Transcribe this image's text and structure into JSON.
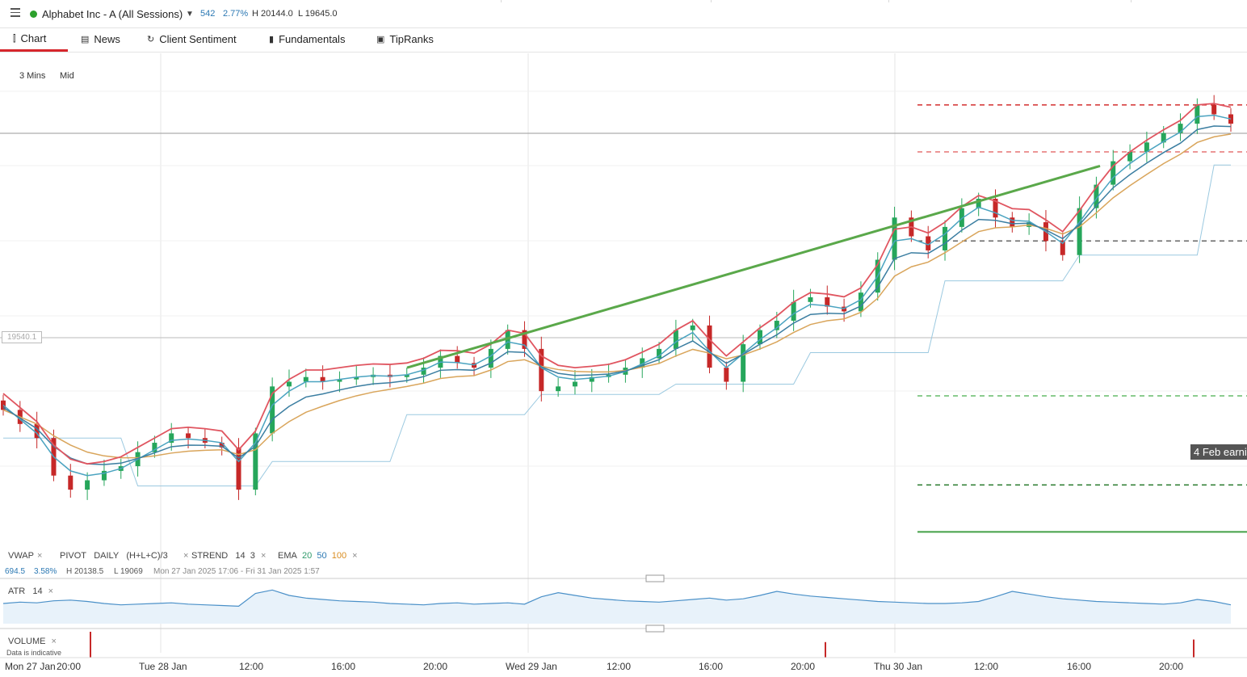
{
  "header": {
    "instrument": "Alphabet Inc - A (All Sessions)",
    "change": "542",
    "change_pct": "2.77%",
    "high": "H 20144.0",
    "low": "L 19645.0",
    "up_color": "#2ca02c"
  },
  "tabs": [
    {
      "label": "Chart",
      "icon": "candles-icon"
    },
    {
      "label": "News",
      "icon": "news-icon"
    },
    {
      "label": "Client Sentiment",
      "icon": "refresh-icon"
    },
    {
      "label": "Fundamentals",
      "icon": "bars-icon"
    },
    {
      "label": "TipRanks",
      "icon": "tipranks-icon"
    }
  ],
  "chart_options": {
    "interval": "3 Mins",
    "price_type": "Mid"
  },
  "price_tag": "19540.1",
  "earnings_badge": "4 Feb earni",
  "indicators": {
    "vwap": "VWAP",
    "pivot": "PIVOT",
    "pivot_period": "DAILY",
    "pivot_formula": "(H+L+C)/3",
    "strend": "STREND",
    "strend_p1": "14",
    "strend_p2": "3",
    "ema": "EMA",
    "ema_20": "20",
    "ema_50": "50",
    "ema_100": "100",
    "stats_change": "694.5",
    "stats_pct": "3.58%",
    "stats_high": "H 20138.5",
    "stats_low": "L 19069",
    "stats_range": "Mon 27 Jan 2025 17:06 - Fri 31 Jan 2025 1:57",
    "atr": "ATR",
    "atr_period": "14",
    "volume": "VOLUME",
    "volume_note": "Data is indicative",
    "remove_symbol": "×"
  },
  "colors": {
    "bull": "#26a65b",
    "bear": "#c62828",
    "ema20": "#4aa3c0",
    "ema50": "#3b7ea1",
    "ema100": "#d9a55b",
    "strend": "#e05560",
    "trend": "#5aa84a",
    "vwap": "#9bc9e0",
    "atr": "#4a90c8"
  },
  "chart_data": {
    "type": "candlestick",
    "x_ticks": [
      "Mon 27 Jan",
      "20:00",
      "Tue 28 Jan",
      "12:00",
      "16:00",
      "20:00",
      "Wed 29 Jan",
      "12:00",
      "16:00",
      "20:00",
      "Thu 30 Jan",
      "12:00",
      "16:00",
      "20:00"
    ],
    "close": [
      19470,
      19440,
      19410,
      19330,
      19300,
      19320,
      19340,
      19350,
      19380,
      19400,
      19420,
      19410,
      19400,
      19390,
      19300,
      19420,
      19520,
      19530,
      19540,
      19530,
      19535,
      19540,
      19545,
      19540,
      19545,
      19560,
      19585,
      19570,
      19560,
      19600,
      19640,
      19600,
      19510,
      19520,
      19530,
      19540,
      19545,
      19560,
      19580,
      19600,
      19640,
      19650,
      19560,
      19530,
      19610,
      19640,
      19660,
      19700,
      19710,
      19690,
      19680,
      19720,
      19790,
      19880,
      19840,
      19810,
      19860,
      19900,
      19920,
      19880,
      19860,
      19870,
      19830,
      19800,
      19900,
      19950,
      20000,
      20020,
      20040,
      20060,
      20080,
      20120,
      20100,
      20080
    ],
    "ema20": [
      19480,
      19450,
      19420,
      19370,
      19340,
      19330,
      19335,
      19345,
      19365,
      19385,
      19405,
      19408,
      19405,
      19400,
      19360,
      19400,
      19480,
      19510,
      19530,
      19530,
      19535,
      19540,
      19543,
      19542,
      19545,
      19555,
      19572,
      19571,
      19566,
      19585,
      19615,
      19608,
      19560,
      19540,
      19535,
      19538,
      19542,
      19552,
      19568,
      19585,
      19615,
      19635,
      19595,
      19560,
      19590,
      19620,
      19645,
      19675,
      19695,
      19692,
      19686,
      19705,
      19755,
      19830,
      19835,
      19822,
      19845,
      19878,
      19902,
      19890,
      19874,
      19872,
      19850,
      19825,
      19870,
      19920,
      19965,
      19995,
      20020,
      20042,
      20062,
      20095,
      20098,
      20090
    ],
    "ema100": [
      19470,
      19455,
      19440,
      19415,
      19395,
      19380,
      19372,
      19368,
      19368,
      19372,
      19378,
      19382,
      19384,
      19385,
      19375,
      19385,
      19420,
      19445,
      19465,
      19478,
      19490,
      19500,
      19508,
      19514,
      19520,
      19527,
      19537,
      19541,
      19543,
      19555,
      19573,
      19577,
      19563,
      19556,
      19552,
      19551,
      19551,
      19554,
      19561,
      19569,
      19585,
      19599,
      19591,
      19579,
      19587,
      19600,
      19615,
      19635,
      19652,
      19660,
      19664,
      19678,
      19708,
      19755,
      19775,
      19785,
      19805,
      19828,
      19850,
      19858,
      19860,
      19864,
      19857,
      19845,
      19860,
      19890,
      19922,
      19948,
      19972,
      19995,
      20015,
      20040,
      20052,
      20058
    ],
    "trendline": [
      {
        "x": "Tue 28 Jan 20:00",
        "y": 19560
      },
      {
        "x": "Thu 30 Jan 16:30",
        "y": 19990
      }
    ],
    "pivot_levels": [
      {
        "value": 20120,
        "style": "dashed",
        "color": "#d32f2f"
      },
      {
        "value": 20020,
        "style": "dashed",
        "color": "#e57373"
      },
      {
        "value": 19830,
        "style": "dashed",
        "color": "#666"
      },
      {
        "value": 19500,
        "style": "dashed",
        "color": "#66bb6a"
      },
      {
        "value": 19310,
        "style": "dashed",
        "color": "#2e7d32"
      },
      {
        "value": 19210,
        "style": "solid",
        "color": "#43a047"
      }
    ],
    "ylim": [
      19190,
      20230
    ],
    "atr": [
      30,
      32,
      31,
      34,
      35,
      33,
      30,
      28,
      29,
      30,
      31,
      29,
      28,
      27,
      26,
      45,
      50,
      42,
      38,
      36,
      34,
      33,
      32,
      30,
      29,
      28,
      30,
      31,
      29,
      30,
      31,
      29,
      40,
      46,
      42,
      38,
      36,
      34,
      33,
      32,
      34,
      36,
      38,
      35,
      37,
      42,
      48,
      44,
      41,
      39,
      37,
      35,
      33,
      32,
      31,
      30,
      30,
      31,
      33,
      40,
      48,
      44,
      40,
      37,
      35,
      33,
      32,
      31,
      30,
      29,
      31,
      36,
      33,
      28
    ],
    "volume_spikes": [
      {
        "x": "Mon 27 Jan 20:00",
        "value": 1.0
      },
      {
        "x": "Thu 30 Jan 16:00",
        "value": 0.6
      },
      {
        "x": "Thu 30 Jan 20:00",
        "value": 0.7
      }
    ]
  }
}
